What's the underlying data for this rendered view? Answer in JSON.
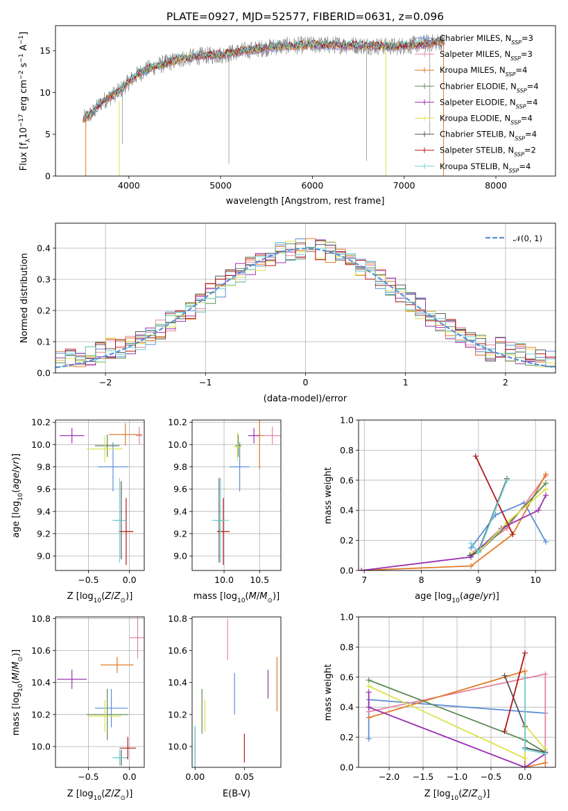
{
  "chart_data": [
    {
      "id": "spectrum",
      "type": "line",
      "title": "PLATE=0927, MJD=52577, FIBERID=0631, z=0.096",
      "xlabel": "wavelength [Angstrom, rest frame]",
      "ylabel": "Flux [f_λ10^-17 erg cm^-2 s^-1 A^-1]",
      "xlim": [
        3200,
        8650
      ],
      "ylim": [
        0,
        18
      ],
      "xticks": [
        4000,
        5000,
        6000,
        7000,
        8000
      ],
      "yticks": [
        0,
        5,
        10,
        15
      ],
      "grid": false,
      "legend_position": "right",
      "series": [
        {
          "name": "Chabrier MILES, N_SSP=3",
          "color": "#5b8fd6"
        },
        {
          "name": "Salpeter MILES, N_SSP=3",
          "color": "#e7839e"
        },
        {
          "name": "Kroupa MILES, N_SSP=4",
          "color": "#e07b28"
        },
        {
          "name": "Chabrier ELODIE, N_SSP=4",
          "color": "#5c8a55"
        },
        {
          "name": "Salpeter ELODIE, N_SSP=4",
          "color": "#9b30b0"
        },
        {
          "name": "Kroupa ELODIE, N_SSP=4",
          "color": "#dce14a"
        },
        {
          "name": "Chabrier STELIB, N_SSP=4",
          "color": "#555555"
        },
        {
          "name": "Salpeter STELIB, N_SSP=2",
          "color": "#b01818"
        },
        {
          "name": "Kroupa STELIB, N_SSP=4",
          "color": "#6fd2d6"
        }
      ],
      "data_color": "#808080",
      "continuum": {
        "x": [
          3500,
          3600,
          3700,
          3800,
          3900,
          4000,
          4100,
          4200,
          4400,
          4600,
          4800,
          5000,
          5200,
          5400,
          5600,
          5800,
          6000,
          6300,
          6600,
          6900,
          7200,
          7500
        ],
        "y": [
          6.8,
          7.5,
          8.8,
          9.5,
          10.2,
          11.3,
          12.2,
          12.8,
          13.5,
          14.1,
          14.4,
          14.5,
          14.9,
          15.2,
          15.5,
          15.6,
          15.7,
          15.7,
          15.6,
          15.5,
          15.8,
          16.2
        ]
      }
    },
    {
      "id": "residuals",
      "type": "histogram",
      "xlabel": "(data-model)/error",
      "ylabel": "Normed distribution",
      "xlim": [
        -2.5,
        2.5
      ],
      "ylim": [
        0,
        0.48
      ],
      "xticks": [
        -2,
        -1,
        0,
        1,
        2
      ],
      "yticks": [
        0.0,
        0.1,
        0.2,
        0.3,
        0.4
      ],
      "grid": true,
      "legend": [
        "𝒩(0, 1)"
      ],
      "legend_position": "top-right",
      "gaussian_color": "#5b8fd6",
      "bin_width": 0.1
    },
    {
      "id": "age_vs_Z",
      "type": "errorbar",
      "xlabel": "Z [log10(Z/Z⊙)]",
      "ylabel": "age [log10(age/yr)]",
      "xlim": [
        -0.9,
        0.18
      ],
      "ylim": [
        8.87,
        10.22
      ],
      "xticks": [
        -0.5,
        0.0
      ],
      "yticks": [
        9.0,
        9.2,
        9.4,
        9.6,
        9.8,
        10.0,
        10.2
      ],
      "grid": true,
      "points": [
        {
          "model": "Chabrier MILES",
          "x": -0.2,
          "y": 9.8,
          "xerr": 0.18,
          "yerr": 0.22,
          "color": "#5b8fd6"
        },
        {
          "model": "Salpeter MILES",
          "x": 0.12,
          "y": 10.08,
          "xerr": 0.04,
          "yerr": 0.08,
          "color": "#e7839e"
        },
        {
          "model": "Kroupa MILES",
          "x": -0.05,
          "y": 10.09,
          "xerr": 0.2,
          "yerr": 0.1,
          "color": "#e07b28"
        },
        {
          "model": "Chabrier ELODIE",
          "x": -0.27,
          "y": 9.99,
          "xerr": 0.15,
          "yerr": 0.1,
          "color": "#5c8a55"
        },
        {
          "model": "Salpeter ELODIE",
          "x": -0.7,
          "y": 10.08,
          "xerr": 0.15,
          "yerr": 0.07,
          "color": "#9b30b0"
        },
        {
          "model": "Kroupa ELODIE",
          "x": -0.3,
          "y": 9.96,
          "xerr": 0.22,
          "yerr": 0.12,
          "color": "#dce14a"
        },
        {
          "model": "Chabrier STELIB",
          "x": -0.1,
          "y": 9.32,
          "xerr": 0.07,
          "yerr": 0.35,
          "color": "#555555"
        },
        {
          "model": "Salpeter STELIB",
          "x": -0.04,
          "y": 9.22,
          "xerr": 0.09,
          "yerr": 0.3,
          "color": "#b01818"
        },
        {
          "model": "Kroupa STELIB",
          "x": -0.12,
          "y": 9.32,
          "xerr": 0.09,
          "yerr": 0.38,
          "color": "#6fd2d6"
        }
      ]
    },
    {
      "id": "age_vs_mass",
      "type": "errorbar",
      "xlabel": "mass [log10(M/M⊙)]",
      "xlim": [
        9.55,
        10.8
      ],
      "ylim": [
        8.87,
        10.22
      ],
      "xticks": [
        10.0,
        10.5
      ],
      "yticks": [
        9.0,
        9.2,
        9.4,
        9.6,
        9.8,
        10.0,
        10.2
      ],
      "grid": true,
      "points": [
        {
          "model": "Chabrier MILES",
          "x": 10.22,
          "y": 9.8,
          "xerr": 0.14,
          "yerr": 0.22,
          "color": "#5b8fd6"
        },
        {
          "model": "Salpeter MILES",
          "x": 10.68,
          "y": 10.08,
          "xerr": 0.12,
          "yerr": 0.08,
          "color": "#e7839e"
        },
        {
          "model": "Kroupa MILES",
          "x": 10.5,
          "y": 10.08,
          "xerr": 0.06,
          "yerr": 0.3,
          "color": "#e07b28"
        },
        {
          "model": "Chabrier ELODIE",
          "x": 10.2,
          "y": 9.99,
          "xerr": 0.04,
          "yerr": 0.1,
          "color": "#5c8a55"
        },
        {
          "model": "Salpeter ELODIE",
          "x": 10.42,
          "y": 10.08,
          "xerr": 0.08,
          "yerr": 0.07,
          "color": "#9b30b0"
        },
        {
          "model": "Kroupa ELODIE",
          "x": 10.19,
          "y": 9.98,
          "xerr": 0.05,
          "yerr": 0.13,
          "color": "#dce14a"
        },
        {
          "model": "Chabrier STELIB",
          "x": 9.93,
          "y": 9.32,
          "xerr": 0.05,
          "yerr": 0.38,
          "color": "#555555"
        },
        {
          "model": "Salpeter STELIB",
          "x": 9.99,
          "y": 9.22,
          "xerr": 0.09,
          "yerr": 0.3,
          "color": "#b01818"
        },
        {
          "model": "Kroupa STELIB",
          "x": 9.95,
          "y": 9.32,
          "xerr": 0.12,
          "yerr": 0.38,
          "color": "#6fd2d6"
        }
      ]
    },
    {
      "id": "weight_vs_age",
      "type": "line",
      "xlabel": "age [log10(age/yr)]",
      "ylabel": "mass weight",
      "xlim": [
        6.9,
        10.35
      ],
      "ylim": [
        0,
        1
      ],
      "xticks": [
        7,
        8,
        9,
        10
      ],
      "yticks": [
        0.0,
        0.2,
        0.4,
        0.6,
        0.8,
        1.0
      ],
      "grid": true,
      "series": [
        {
          "model": "Chabrier MILES",
          "color": "#5b8fd6",
          "x": [
            8.87,
            9.3,
            9.8,
            10.18
          ],
          "y": [
            0.15,
            0.37,
            0.45,
            0.19
          ]
        },
        {
          "model": "Salpeter MILES",
          "color": "#e7839e",
          "x": [
            8.9,
            9.5,
            10.18
          ],
          "y": [
            0.12,
            0.28,
            0.63
          ]
        },
        {
          "model": "Kroupa MILES",
          "color": "#e07b28",
          "x": [
            6.9,
            8.87,
            9.6,
            10.18
          ],
          "y": [
            0.0,
            0.03,
            0.24,
            0.64
          ]
        },
        {
          "model": "Chabrier ELODIE",
          "color": "#5c8a55",
          "x": [
            8.85,
            9.0,
            9.5,
            10.18
          ],
          "y": [
            0.1,
            0.12,
            0.3,
            0.58
          ]
        },
        {
          "model": "Salpeter ELODIE",
          "color": "#9b30b0",
          "x": [
            6.95,
            8.87,
            9.4,
            10.05,
            10.18
          ],
          "y": [
            0.0,
            0.09,
            0.28,
            0.4,
            0.5
          ]
        },
        {
          "model": "Kroupa ELODIE",
          "color": "#dce14a",
          "x": [
            8.9,
            9.0,
            9.5,
            10.18
          ],
          "y": [
            0.12,
            0.12,
            0.32,
            0.54
          ]
        },
        {
          "model": "Chabrier STELIB",
          "color": "#555555",
          "x": [
            8.85,
            9.0,
            9.5
          ],
          "y": [
            0.1,
            0.13,
            0.61
          ]
        },
        {
          "model": "Salpeter STELIB",
          "color": "#b01818",
          "x": [
            8.95,
            9.6
          ],
          "y": [
            0.76,
            0.24
          ]
        },
        {
          "model": "Kroupa STELIB",
          "color": "#6fd2d6",
          "x": [
            8.87,
            9.0,
            9.5
          ],
          "y": [
            0.18,
            0.12,
            0.6
          ]
        }
      ]
    },
    {
      "id": "mass_vs_Z",
      "type": "errorbar",
      "xlabel": "Z [log10(Z/Z⊙)]",
      "ylabel": "mass [log10(M/M⊙)]",
      "xlim": [
        -0.9,
        0.18
      ],
      "ylim": [
        9.87,
        10.81
      ],
      "xticks": [
        -0.5,
        0.0
      ],
      "yticks": [
        10.0,
        10.2,
        10.4,
        10.6,
        10.8
      ],
      "grid": true,
      "points": [
        {
          "model": "Chabrier MILES",
          "x": -0.22,
          "y": 10.24,
          "xerr": 0.2,
          "yerr": 0.12,
          "color": "#5b8fd6"
        },
        {
          "model": "Salpeter MILES",
          "x": 0.1,
          "y": 10.68,
          "xerr": 0.1,
          "yerr": 0.13,
          "color": "#e7839e"
        },
        {
          "model": "Kroupa MILES",
          "x": -0.15,
          "y": 10.51,
          "xerr": 0.2,
          "yerr": 0.05,
          "color": "#e07b28"
        },
        {
          "model": "Chabrier ELODIE",
          "x": -0.27,
          "y": 10.2,
          "xerr": 0.25,
          "yerr": 0.16,
          "color": "#5c8a55"
        },
        {
          "model": "Salpeter ELODIE",
          "x": -0.7,
          "y": 10.42,
          "xerr": 0.18,
          "yerr": 0.06,
          "color": "#9b30b0"
        },
        {
          "model": "Kroupa ELODIE",
          "x": -0.3,
          "y": 10.19,
          "xerr": 0.2,
          "yerr": 0.1,
          "color": "#dce14a"
        },
        {
          "model": "Chabrier STELIB",
          "x": -0.1,
          "y": 9.93,
          "xerr": 0.08,
          "yerr": 0.05,
          "color": "#555555"
        },
        {
          "model": "Salpeter STELIB",
          "x": -0.02,
          "y": 9.99,
          "xerr": 0.1,
          "yerr": 0.07,
          "color": "#b01818"
        },
        {
          "model": "Kroupa STELIB",
          "x": -0.12,
          "y": 9.93,
          "xerr": 0.09,
          "yerr": 0.05,
          "color": "#6fd2d6"
        }
      ]
    },
    {
      "id": "mass_vs_ebv",
      "type": "errorbar",
      "xlabel": "E(B-V)",
      "xlim": [
        -0.003,
        0.087
      ],
      "ylim": [
        9.87,
        10.81
      ],
      "xticks": [
        0.0,
        0.05
      ],
      "yticks": [
        10.0,
        10.2,
        10.4,
        10.6,
        10.8
      ],
      "grid": false,
      "points": [
        {
          "model": "Chabrier MILES",
          "x": 0.04,
          "y": 10.33,
          "yerr": 0.13,
          "color": "#5b8fd6"
        },
        {
          "model": "Salpeter MILES",
          "x": 0.033,
          "y": 10.67,
          "yerr": 0.13,
          "color": "#e7839e"
        },
        {
          "model": "Kroupa MILES",
          "x": 0.083,
          "y": 10.39,
          "yerr": 0.17,
          "color": "#e07b28"
        },
        {
          "model": "Chabrier ELODIE",
          "x": 0.007,
          "y": 10.22,
          "yerr": 0.14,
          "color": "#5c8a55"
        },
        {
          "model": "Salpeter ELODIE",
          "x": 0.074,
          "y": 10.39,
          "yerr": 0.09,
          "color": "#9b30b0"
        },
        {
          "model": "Kroupa ELODIE",
          "x": 0.01,
          "y": 10.19,
          "yerr": 0.1,
          "color": "#dce14a"
        },
        {
          "model": "Chabrier STELIB",
          "x": 0.0,
          "y": 10.0,
          "yerr": 0.12,
          "color": "#555555"
        },
        {
          "model": "Salpeter STELIB",
          "x": 0.05,
          "y": 9.99,
          "yerr": 0.09,
          "color": "#b01818"
        },
        {
          "model": "Kroupa STELIB",
          "x": 0.0,
          "y": 9.99,
          "yerr": 0.14,
          "color": "#6fd2d6"
        }
      ]
    },
    {
      "id": "weight_vs_Z",
      "type": "line",
      "xlabel": "Z [log10(Z/Z⊙)]",
      "ylabel": "mass weight",
      "xlim": [
        -2.45,
        0.45
      ],
      "ylim": [
        0,
        1
      ],
      "xticks": [
        -2.0,
        -1.5,
        -1.0,
        -0.5,
        0.0
      ],
      "yticks": [
        0.0,
        0.2,
        0.4,
        0.6,
        0.8,
        1.0
      ],
      "grid": true,
      "series": [
        {
          "model": "Chabrier MILES",
          "color": "#5b8fd6",
          "x": [
            -2.3,
            -2.3,
            0.3
          ],
          "y": [
            0.19,
            0.45,
            0.36
          ]
        },
        {
          "model": "Salpeter MILES",
          "color": "#e7839e",
          "x": [
            -2.3,
            0.3,
            0.3
          ],
          "y": [
            0.37,
            0.62,
            0.0
          ]
        },
        {
          "model": "Kroupa MILES",
          "color": "#e07b28",
          "x": [
            -2.3,
            0.0,
            0.0,
            0.3
          ],
          "y": [
            0.33,
            0.64,
            0.0,
            0.03
          ]
        },
        {
          "model": "Chabrier ELODIE",
          "color": "#5c8a55",
          "x": [
            -2.3,
            0.0,
            0.3
          ],
          "y": [
            0.58,
            0.18,
            0.1
          ]
        },
        {
          "model": "Salpeter ELODIE",
          "color": "#9b30b0",
          "x": [
            -2.3,
            -2.3,
            0.0,
            0.3
          ],
          "y": [
            0.5,
            0.4,
            0.0,
            0.09
          ]
        },
        {
          "model": "Kroupa ELODIE",
          "color": "#dce14a",
          "x": [
            -2.3,
            0.0,
            0.0,
            0.3
          ],
          "y": [
            0.54,
            0.06,
            0.28,
            0.12
          ]
        },
        {
          "model": "Chabrier STELIB",
          "color": "#555555",
          "x": [
            -0.3,
            0.0,
            0.0,
            0.3
          ],
          "y": [
            0.61,
            0.27,
            0.13,
            0.1
          ]
        },
        {
          "model": "Salpeter STELIB",
          "color": "#b01818",
          "x": [
            -0.3,
            0.0
          ],
          "y": [
            0.24,
            0.76
          ]
        },
        {
          "model": "Kroupa STELIB",
          "color": "#6fd2d6",
          "x": [
            0.0,
            0.0,
            0.3
          ],
          "y": [
            0.6,
            0.12,
            0.09
          ]
        }
      ]
    }
  ]
}
